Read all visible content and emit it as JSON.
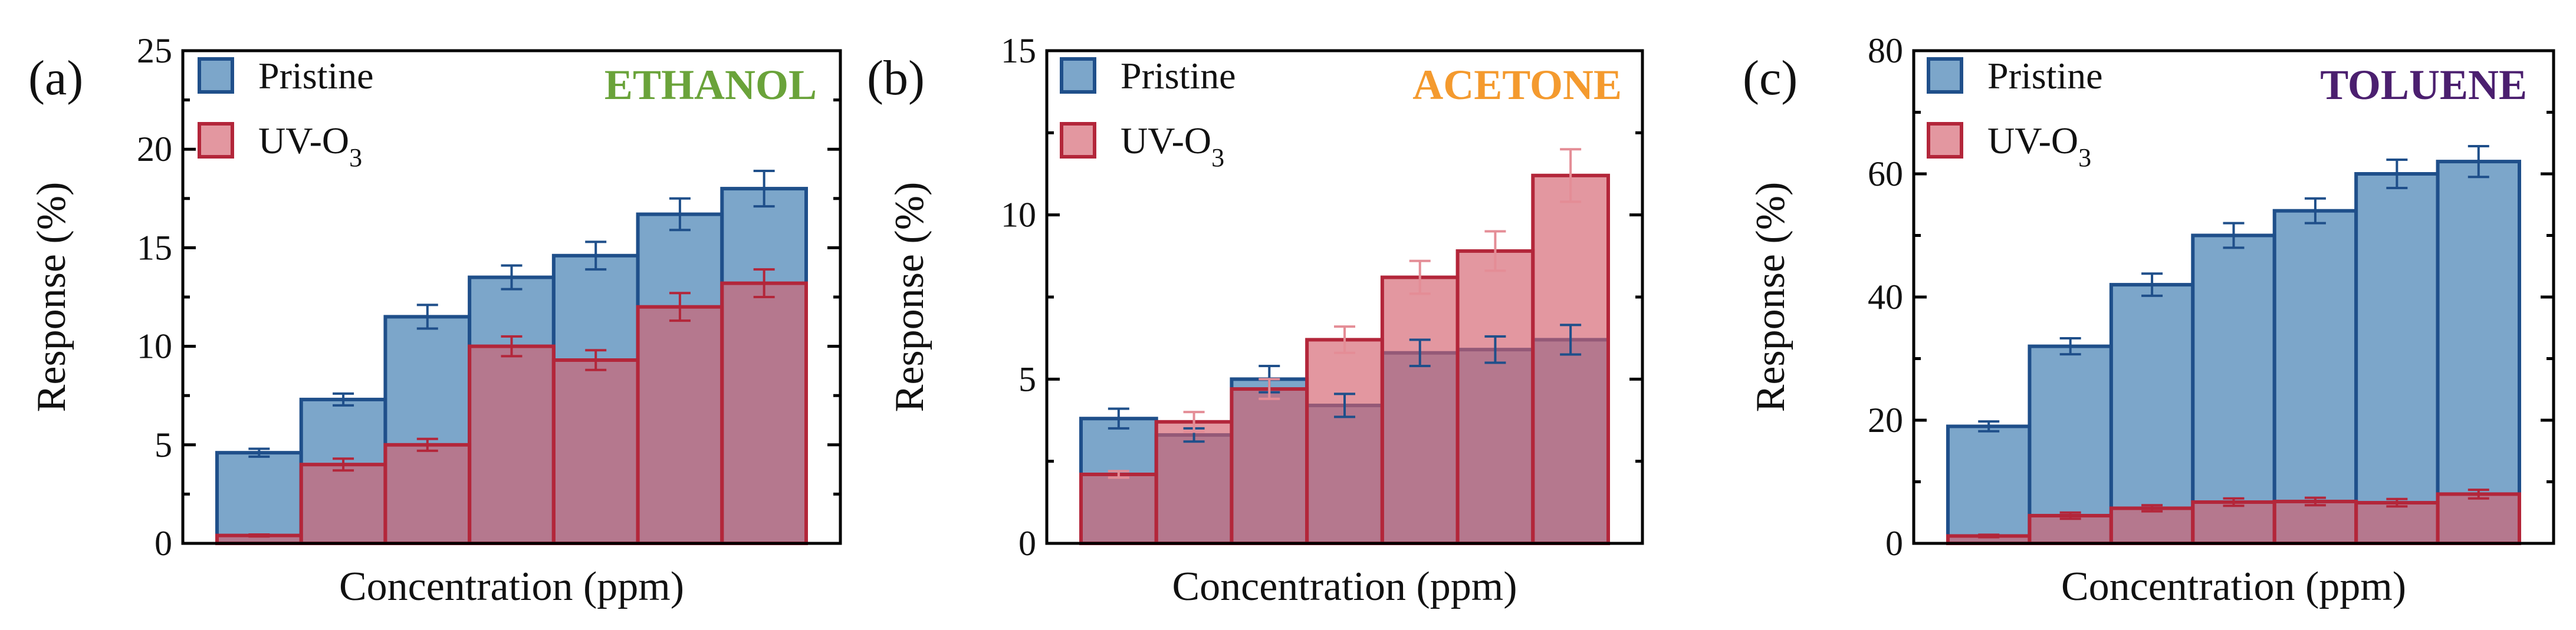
{
  "chart_data": [
    {
      "type": "bar",
      "panel": "(a)",
      "gas": "ETHANOL",
      "gas_color": "#6aa33a",
      "xlabel": "Concentration (ppm)",
      "ylabel": "Response (%)",
      "ylim": [
        0,
        25
      ],
      "yticks": [
        "0",
        "5",
        "10",
        "15",
        "20",
        "25"
      ],
      "series": [
        {
          "name": "Pristine",
          "color": "#6e9cc4",
          "edge": "#1f4f8a",
          "errcolor": "#1f4f8a",
          "opacity": 0.9,
          "values": [
            4.6,
            7.3,
            11.5,
            13.5,
            14.6,
            16.7,
            18.0
          ],
          "errors": [
            0.2,
            0.3,
            0.6,
            0.6,
            0.7,
            0.8,
            0.9
          ]
        },
        {
          "name": "UV-O",
          "name_sub": "3",
          "color": "#d4606d",
          "edge": "#b3263a",
          "errcolor": "#b3263a",
          "opacity": 0.65,
          "values": [
            0.4,
            4.0,
            5.0,
            10.0,
            9.3,
            12.0,
            13.2
          ],
          "errors": [
            0.05,
            0.3,
            0.3,
            0.5,
            0.5,
            0.7,
            0.7
          ]
        }
      ]
    },
    {
      "type": "bar",
      "panel": "(b)",
      "gas": "ACETONE",
      "gas_color": "#f49a2e",
      "xlabel": "Concentration (ppm)",
      "ylabel": "Response (%)",
      "ylim": [
        0,
        15
      ],
      "yticks": [
        "0",
        "5",
        "10",
        "15"
      ],
      "series": [
        {
          "name": "Pristine",
          "color": "#6e9cc4",
          "edge": "#1f4f8a",
          "errcolor": "#1f4f8a",
          "opacity": 0.9,
          "values": [
            3.8,
            3.3,
            5.0,
            4.2,
            5.8,
            5.9,
            6.2
          ],
          "errors": [
            0.3,
            0.2,
            0.4,
            0.35,
            0.4,
            0.4,
            0.45
          ]
        },
        {
          "name": "UV-O",
          "name_sub": "3",
          "color": "#d4606d",
          "edge": "#b3263a",
          "errcolor": "#e48d96",
          "opacity": 0.65,
          "values": [
            2.1,
            3.7,
            4.7,
            6.2,
            8.1,
            8.9,
            11.2
          ],
          "errors": [
            0.1,
            0.3,
            0.3,
            0.4,
            0.5,
            0.6,
            0.8
          ]
        }
      ]
    },
    {
      "type": "bar",
      "panel": "(c)",
      "gas": "TOLUENE",
      "gas_color": "#4b1f6f",
      "xlabel": "Concentration (ppm)",
      "ylabel": "Response (%)",
      "ylim": [
        0,
        80
      ],
      "yticks": [
        "0",
        "20",
        "40",
        "60",
        "80"
      ],
      "series": [
        {
          "name": "Pristine",
          "color": "#6e9cc4",
          "edge": "#1f4f8a",
          "errcolor": "#1f4f8a",
          "opacity": 0.9,
          "values": [
            19.0,
            32.0,
            42.0,
            50.0,
            54.0,
            60.0,
            62.0
          ],
          "errors": [
            0.8,
            1.3,
            1.8,
            2.0,
            2.0,
            2.3,
            2.5
          ]
        },
        {
          "name": "UV-O",
          "name_sub": "3",
          "color": "#d4606d",
          "edge": "#b3263a",
          "errcolor": "#b3263a",
          "opacity": 0.65,
          "values": [
            1.2,
            4.5,
            5.7,
            6.7,
            6.8,
            6.6,
            8.0
          ],
          "errors": [
            0.2,
            0.5,
            0.5,
            0.6,
            0.6,
            0.6,
            0.7
          ]
        }
      ]
    }
  ]
}
